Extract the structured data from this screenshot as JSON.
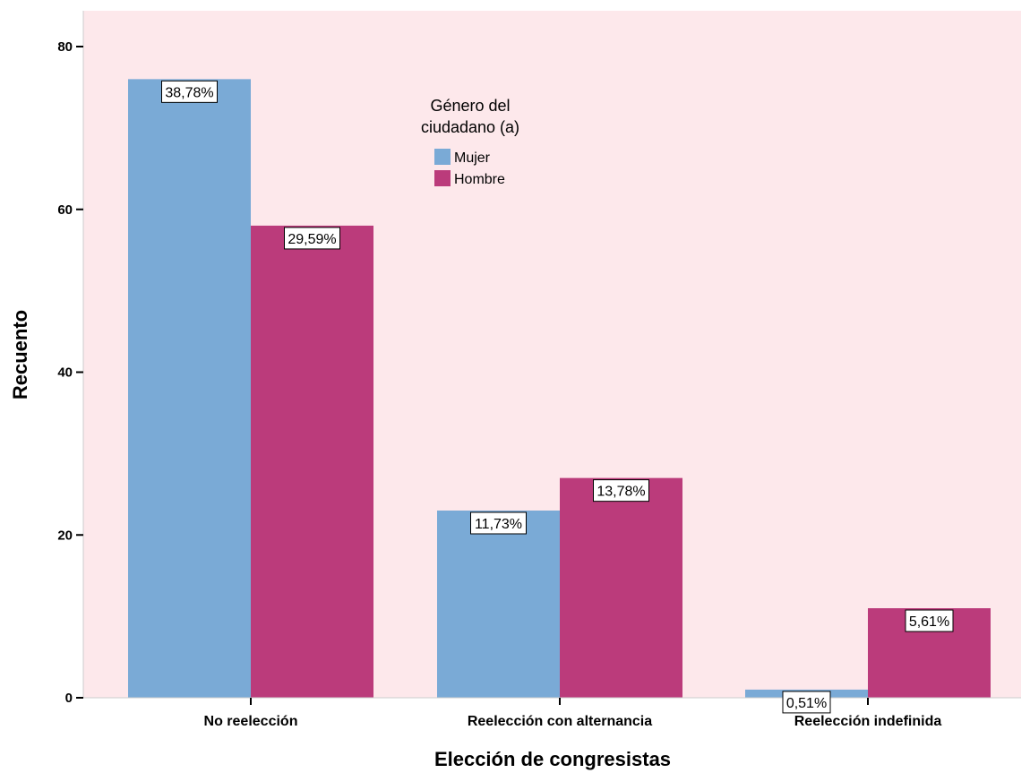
{
  "chart_data": {
    "type": "bar",
    "title": "",
    "xlabel": "Elección de congresistas",
    "ylabel": "Recuento",
    "ylim": [
      0,
      80
    ],
    "yticks": [
      0,
      20,
      40,
      60,
      80
    ],
    "grid": false,
    "legend": {
      "title_lines": [
        "Género del",
        "ciudadano (a)"
      ],
      "placement": "top-center"
    },
    "categories": [
      "No reelección",
      "Reelección con alternancia",
      "Reelección indefinida"
    ],
    "series": [
      {
        "name": "Mujer",
        "color": "#7aaad6",
        "values": [
          76,
          23,
          1
        ],
        "labels": [
          "38,78%",
          "11,73%",
          "0,51%"
        ]
      },
      {
        "name": "Hombre",
        "color": "#bb3b7b",
        "values": [
          58,
          27,
          11
        ],
        "labels": [
          "29,59%",
          "13,78%",
          "5,61%"
        ]
      }
    ],
    "plot_background": "#fde8eb"
  }
}
